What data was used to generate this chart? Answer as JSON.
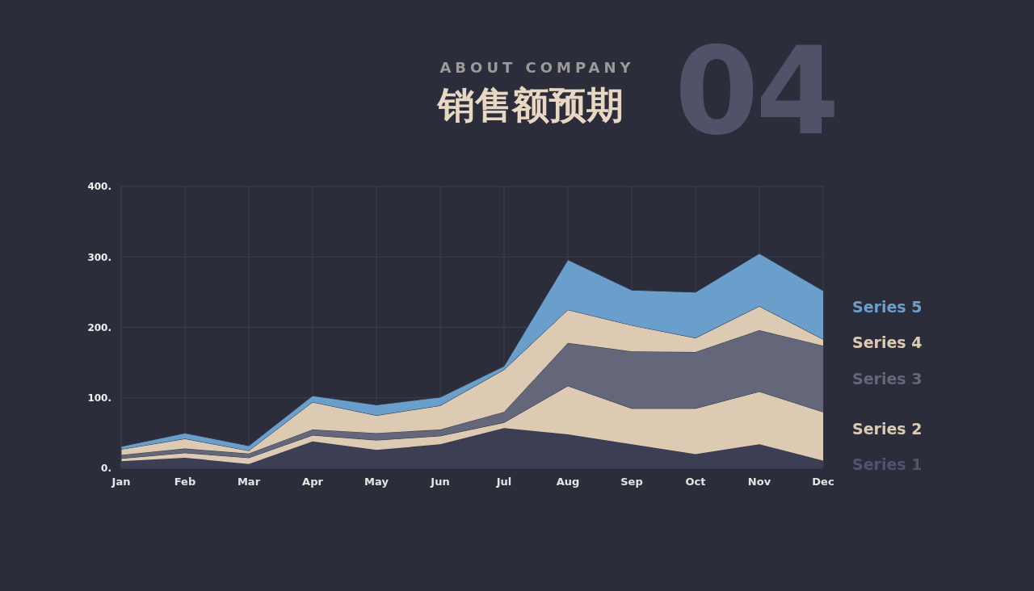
{
  "chart_data": {
    "type": "area",
    "title": "销售额预期",
    "subtitle": "ABOUT COMPANY",
    "annotations": [
      "04"
    ],
    "categories": [
      "Jan",
      "Feb",
      "Mar",
      "Apr",
      "May",
      "Jun",
      "Jul",
      "Aug",
      "Sep",
      "Oct",
      "Nov",
      "Dec"
    ],
    "stacked": true,
    "series": [
      {
        "name": "Series 1",
        "color": "#3c3f54",
        "values": [
          10,
          15,
          6,
          38,
          26,
          34,
          57,
          48,
          34,
          20,
          34,
          11
        ]
      },
      {
        "name": "Series 2",
        "color": "#dccab3",
        "values": [
          4,
          7,
          9,
          9,
          14,
          12,
          8,
          69,
          51,
          65,
          75,
          69
        ]
      },
      {
        "name": "Series 3",
        "color": "#646779",
        "values": [
          5,
          6,
          6,
          8,
          10,
          9,
          15,
          61,
          81,
          80,
          87,
          94
        ]
      },
      {
        "name": "Series 4",
        "color": "#dccab3",
        "values": [
          8,
          14,
          4,
          39,
          25,
          34,
          60,
          47,
          37,
          20,
          34,
          9
        ]
      },
      {
        "name": "Series 5",
        "color": "#6a9fcb",
        "values": [
          4,
          8,
          7,
          9,
          15,
          12,
          5,
          71,
          50,
          65,
          75,
          69
        ]
      }
    ],
    "ylim": [
      0,
      400
    ],
    "yticks": [
      {
        "value": 0,
        "label": "0."
      },
      {
        "value": 100,
        "label": "100."
      },
      {
        "value": 200,
        "label": "200."
      },
      {
        "value": 300,
        "label": "300."
      },
      {
        "value": 400,
        "label": "400."
      }
    ],
    "grid": true,
    "legend": "right"
  }
}
